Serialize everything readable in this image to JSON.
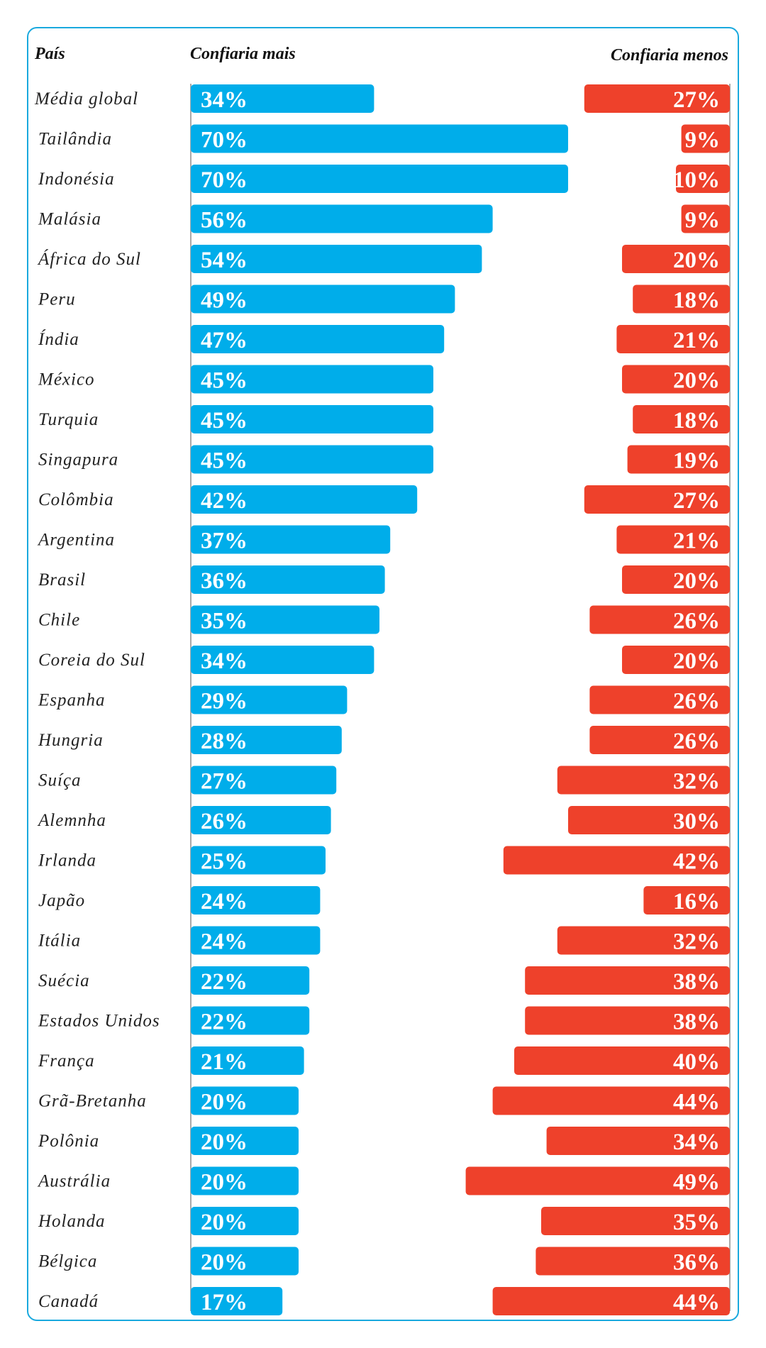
{
  "colors": {
    "more": "#00adea",
    "less": "#ee412b",
    "frame": "#1aa9de",
    "axis": "#aaaaaa",
    "text": "#222222"
  },
  "chart_data": {
    "type": "bar",
    "layout": "diverging-horizontal",
    "xlim": [
      0,
      100
    ],
    "headers": {
      "country": "País",
      "more": "Confiaria mais",
      "less": "Confiaria menos"
    },
    "categories": [
      "Média global",
      "Tailândia",
      "Indonésia",
      "Malásia",
      "África do Sul",
      "Peru",
      "Índia",
      "México",
      "Turquia",
      "Singapura",
      "Colômbia",
      "Argentina",
      "Brasil",
      "Chile",
      "Coreia do Sul",
      "Espanha",
      "Hungria",
      "Suíça",
      "Alemnha",
      "Irlanda",
      "Japão",
      "Itália",
      "Suécia",
      "Estados Unidos",
      "França",
      "Grã-Bretanha",
      "Polônia",
      "Austrália",
      "Holanda",
      "Bélgica",
      "Canadá"
    ],
    "series": [
      {
        "name": "Confiaria mais",
        "values": [
          34,
          70,
          70,
          56,
          54,
          49,
          47,
          45,
          45,
          45,
          42,
          37,
          36,
          35,
          34,
          29,
          28,
          27,
          26,
          25,
          24,
          24,
          22,
          22,
          21,
          20,
          20,
          20,
          20,
          20,
          17
        ]
      },
      {
        "name": "Confiaria menos",
        "values": [
          27,
          9,
          10,
          9,
          20,
          18,
          21,
          20,
          18,
          19,
          27,
          21,
          20,
          26,
          20,
          26,
          26,
          32,
          30,
          42,
          16,
          32,
          38,
          38,
          40,
          44,
          34,
          49,
          35,
          36,
          44
        ]
      }
    ],
    "value_suffix": "%"
  }
}
